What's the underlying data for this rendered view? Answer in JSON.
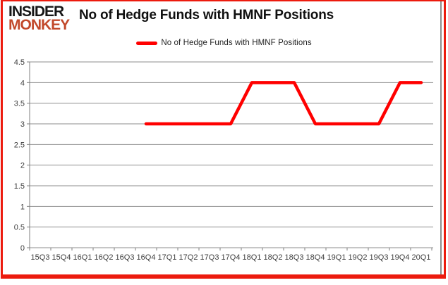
{
  "header": {
    "logo": {
      "line1": "INSIDER",
      "line2": "MONKEY"
    },
    "title": "No of Hedge Funds with HMNF Positions"
  },
  "legend": {
    "label": "No of Hedge Funds with HMNF Positions"
  },
  "colors": {
    "series": "#ff0000",
    "frame_border": "#ec1b0e",
    "logo_black": "#161616",
    "logo_accent": "#c2492b",
    "gridline": "#8e8e8e",
    "axis_line": "#7f7f7f",
    "axis_text": "#3d3d3d",
    "title_text": "#101010"
  },
  "chart_data": {
    "type": "line",
    "title": "No of Hedge Funds with HMNF Positions",
    "categories": [
      "15Q3",
      "15Q4",
      "16Q1",
      "16Q2",
      "16Q3",
      "16Q4",
      "17Q1",
      "17Q2",
      "17Q3",
      "17Q4",
      "18Q1",
      "18Q2",
      "18Q3",
      "18Q4",
      "19Q1",
      "19Q2",
      "19Q3",
      "19Q4",
      "20Q1"
    ],
    "series": [
      {
        "name": "No of Hedge Funds with HMNF Positions",
        "color": "#ff0000",
        "values": [
          null,
          null,
          null,
          null,
          null,
          3,
          3,
          3,
          3,
          3,
          4,
          4,
          4,
          3,
          3,
          3,
          3,
          4,
          4
        ]
      }
    ],
    "xlabel": "",
    "ylabel": "",
    "ylim": [
      0,
      4.5
    ],
    "ytick_step": 0.5,
    "ytick_labels": [
      "0",
      "0.5",
      "1",
      "1.5",
      "2",
      "2.5",
      "3",
      "3.5",
      "4",
      "4.5"
    ],
    "grid": true,
    "legend_position": "top-center"
  }
}
